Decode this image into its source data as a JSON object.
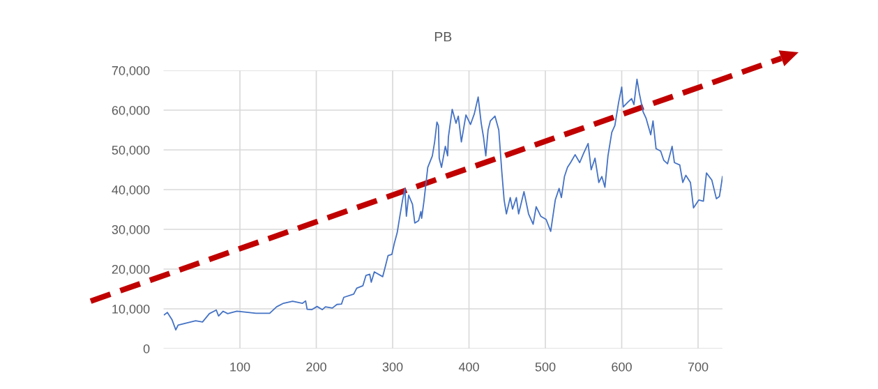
{
  "chart_data": {
    "type": "line",
    "title": "PB",
    "xlim": [
      0,
      732
    ],
    "xticks": [
      100,
      200,
      300,
      400,
      500,
      600,
      700
    ],
    "ylim": [
      0,
      70000
    ],
    "yticks": [
      0,
      {
        "value": 10000,
        "label": "10,000"
      },
      {
        "value": 20000,
        "label": "20,000"
      },
      {
        "value": 30000,
        "label": "30,000"
      },
      {
        "value": 40000,
        "label": "40,000"
      },
      {
        "value": 50000,
        "label": "50,000"
      },
      {
        "value": 60000,
        "label": "60,000"
      },
      {
        "value": 70000,
        "label": "70,000"
      }
    ],
    "grid": true,
    "legend": false,
    "marker": "none",
    "line_style": "solid",
    "series": [
      {
        "color": "#4472c4",
        "x": [
          1,
          5,
          11,
          16,
          19,
          29,
          42,
          51,
          60,
          69,
          72,
          78,
          84,
          96,
          121,
          139,
          148,
          157,
          169,
          182,
          186,
          188,
          194,
          201,
          208,
          212,
          221,
          227,
          233,
          236,
          249,
          253,
          261,
          265,
          270,
          272,
          276,
          287,
          291,
          294,
          299,
          302,
          306,
          309,
          313,
          316,
          318,
          321,
          326,
          329,
          334,
          337,
          338,
          341,
          346,
          352,
          355,
          358,
          360,
          361,
          364,
          369,
          372,
          373,
          378,
          383,
          386,
          390,
          396,
          402,
          407,
          412,
          416,
          419,
          422,
          425,
          428,
          434,
          439,
          443,
          446,
          449,
          454,
          457,
          462,
          465,
          472,
          478,
          484,
          488,
          494,
          501,
          507,
          513,
          518,
          521,
          525,
          529,
          533,
          539,
          545,
          550,
          556,
          560,
          565,
          570,
          574,
          578,
          582,
          587,
          591,
          596,
          600,
          602,
          608,
          613,
          616,
          620,
          623,
          628,
          632,
          638,
          641,
          645,
          651,
          655,
          660,
          666,
          669,
          676,
          680,
          684,
          690,
          694,
          701,
          707,
          711,
          718,
          724,
          728,
          732
        ],
        "values": [
          8500,
          9100,
          7300,
          4700,
          5900,
          6400,
          7000,
          6700,
          8800,
          9700,
          8200,
          9400,
          8800,
          9400,
          8900,
          8900,
          10500,
          11400,
          11900,
          11400,
          12000,
          9900,
          9800,
          10600,
          9800,
          10500,
          10200,
          11100,
          11200,
          12900,
          13700,
          15200,
          15800,
          18400,
          18700,
          16700,
          19300,
          18100,
          21100,
          23400,
          23700,
          26300,
          29200,
          32800,
          37400,
          40300,
          33300,
          38600,
          36300,
          31600,
          32200,
          34500,
          32800,
          37100,
          45600,
          48500,
          52000,
          57000,
          56100,
          47900,
          45600,
          50900,
          48500,
          53200,
          60200,
          56700,
          58500,
          52000,
          58800,
          56400,
          59100,
          63300,
          56700,
          53200,
          48500,
          55000,
          57300,
          58500,
          55000,
          44400,
          37400,
          33900,
          38000,
          35100,
          38000,
          33900,
          39500,
          33900,
          31300,
          35700,
          33300,
          32500,
          29500,
          37400,
          40300,
          38000,
          43300,
          45600,
          46800,
          48800,
          46800,
          49100,
          51600,
          45000,
          47900,
          41800,
          43300,
          40600,
          48500,
          54400,
          56100,
          62000,
          65800,
          60800,
          62000,
          62900,
          61400,
          67800,
          64300,
          59600,
          57900,
          53800,
          57300,
          50300,
          49700,
          47400,
          46500,
          50900,
          46800,
          46200,
          41800,
          43600,
          41800,
          35400,
          37400,
          37100,
          44200,
          42400,
          37700,
          38300,
          43300
        ]
      }
    ]
  }
}
